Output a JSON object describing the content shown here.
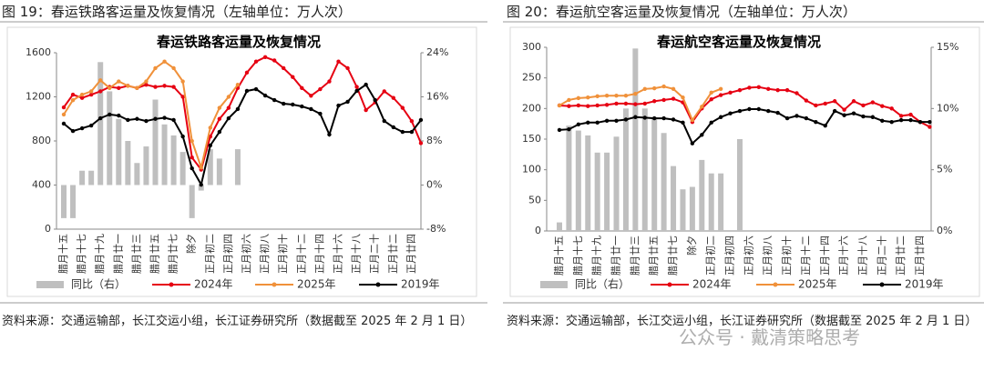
{
  "figure_captions": [
    "图 19：春运铁路客运量及恢复情况（左轴单位：万人次）",
    "图 20：春运航空客运量及恢复情况（左轴单位：万人次）"
  ],
  "sources": [
    "资料来源：交通运输部，长江交运小组，长江证券研究所（数据截至 2025 年 2 月 1 日）",
    "资料来源：交通运输部，长江交运小组，长江证券研究所（数据截至 2025 年 2 月 1 日）"
  ],
  "watermark": "公众号 · 戴清策略思考",
  "chart_data": [
    {
      "type": "combo",
      "title": "春运铁路客运量及恢复情况",
      "categories": [
        "腊月十五",
        null,
        "腊月十七",
        null,
        "腊月十九",
        null,
        "腊月廿一",
        null,
        "腊月廿三",
        null,
        "腊月廿五",
        null,
        "腊月廿七",
        null,
        "除夕",
        null,
        "正月初二",
        null,
        "正月初四",
        null,
        "正月初六",
        null,
        "正月初八",
        null,
        "正月初十",
        null,
        "正月十二",
        null,
        "正月十四",
        null,
        "正月十六",
        null,
        "正月十八",
        null,
        "正月二十",
        null,
        "正月廿二",
        null,
        "正月廿四",
        null
      ],
      "ylim": [
        0,
        1600
      ],
      "yticks": [
        0,
        400,
        800,
        1200,
        1600
      ],
      "y2lim": [
        -8,
        24
      ],
      "y2ticks": [
        {
          "value": -8,
          "label": "-8%"
        },
        {
          "value": 0,
          "label": "0%"
        },
        {
          "value": 8,
          "label": "8%"
        },
        {
          "value": 16,
          "label": "16%"
        },
        {
          "value": 24,
          "label": "24%"
        }
      ],
      "grid": false,
      "series": [
        {
          "name": "同比（右）",
          "type": "bar",
          "axis": "y2",
          "color": "#bfbfbf",
          "values": [
            -6,
            -6,
            2.6,
            2.6,
            22.3,
            17,
            12,
            8,
            4,
            7,
            15.5,
            11,
            9,
            6,
            -6,
            -1,
            6.5,
            4.8,
            null,
            6.5,
            null,
            null,
            null,
            null,
            null,
            null,
            null,
            null,
            null,
            null,
            null,
            null,
            null,
            null,
            null,
            null,
            null,
            null,
            null,
            null
          ]
        },
        {
          "name": "2024年",
          "type": "line",
          "color": "#e60012",
          "values": [
            1105,
            1220,
            1190,
            1220,
            1250,
            1290,
            1280,
            1300,
            1280,
            1310,
            1290,
            1300,
            1290,
            1200,
            650,
            540,
            840,
            1000,
            1100,
            1280,
            1420,
            1520,
            1560,
            1530,
            1460,
            1380,
            1280,
            1210,
            1270,
            1340,
            1520,
            1460,
            1290,
            1080,
            1150,
            1250,
            1190,
            1100,
            980,
            780
          ]
        },
        {
          "name": "2025年",
          "type": "line",
          "color": "#f0913a",
          "values": [
            1040,
            1170,
            1220,
            1250,
            1350,
            1280,
            1340,
            1300,
            1280,
            1340,
            1460,
            1520,
            1460,
            1340,
            800,
            560,
            920,
            1100,
            1200,
            1310,
            null,
            null,
            null,
            null,
            null,
            null,
            null,
            null,
            null,
            null,
            null,
            null,
            null,
            null,
            null,
            null,
            null,
            null,
            null,
            null
          ]
        },
        {
          "name": "2019年",
          "type": "line",
          "color": "#000000",
          "values": [
            957,
            890,
            915,
            940,
            1006,
            1040,
            1030,
            990,
            1000,
            981,
            1000,
            1010,
            990,
            841,
            552,
            404,
            759,
            882,
            1006,
            1089,
            1254,
            1270,
            1212,
            1171,
            1138,
            1130,
            1113,
            1089,
            1047,
            858,
            1121,
            1155,
            1254,
            1311,
            1171,
            981,
            924,
            882,
            882,
            990
          ]
        }
      ]
    },
    {
      "type": "combo",
      "title": "春运航空客运量及恢复情况",
      "categories": [
        "腊月十五",
        null,
        "腊月十七",
        null,
        "腊月十九",
        null,
        "腊月廿一",
        null,
        "腊月廿三",
        null,
        "腊月廿五",
        null,
        "腊月廿七",
        null,
        "除夕",
        null,
        "正月初二",
        null,
        "正月初四",
        null,
        "正月初六",
        null,
        "正月初八",
        null,
        "正月初十",
        null,
        "正月十二",
        null,
        "正月十四",
        null,
        "正月十六",
        null,
        "正月十八",
        null,
        "正月二十",
        null,
        "正月廿二",
        null,
        "正月廿四",
        null
      ],
      "ylim": [
        0,
        300
      ],
      "yticks": [
        0,
        50,
        100,
        150,
        200,
        250,
        300
      ],
      "y2lim": [
        0,
        15
      ],
      "y2ticks": [
        {
          "value": 0,
          "label": "0%"
        },
        {
          "value": 5,
          "label": "5%"
        },
        {
          "value": 10,
          "label": "10%"
        },
        {
          "value": 15,
          "label": "15%"
        }
      ],
      "grid": false,
      "series": [
        {
          "name": "同比（右）",
          "type": "bar",
          "axis": "y2",
          "color": "#bfbfbf",
          "values": [
            0.7,
            8.6,
            8.2,
            7.8,
            6.4,
            6.4,
            7.7,
            10,
            14.9,
            10,
            9.3,
            8,
            5.3,
            3.4,
            3.6,
            5.8,
            4.7,
            4.7,
            null,
            7.5,
            null,
            null,
            null,
            null,
            null,
            null,
            null,
            null,
            null,
            null,
            null,
            null,
            null,
            null,
            null,
            null,
            null,
            null,
            null,
            null
          ]
        },
        {
          "name": "2024年",
          "type": "line",
          "color": "#e60012",
          "values": [
            205,
            204,
            205,
            204,
            205,
            206,
            208,
            208,
            207,
            208,
            212,
            214,
            216,
            210,
            178,
            200,
            215,
            222,
            226,
            230,
            234,
            235,
            232,
            230,
            230,
            225,
            213,
            205,
            208,
            212,
            198,
            212,
            205,
            210,
            204,
            200,
            188,
            190,
            178,
            170
          ]
        },
        {
          "name": "2025年",
          "type": "line",
          "color": "#f0913a",
          "values": [
            205,
            214,
            217,
            218,
            220,
            221,
            221,
            221,
            224,
            232,
            233,
            236,
            232,
            218,
            181,
            203,
            226,
            232,
            null,
            null,
            null,
            null,
            null,
            null,
            null,
            null,
            null,
            null,
            null,
            null,
            null,
            null,
            null,
            null,
            null,
            null,
            null,
            null,
            null,
            null
          ]
        },
        {
          "name": "2019年",
          "type": "line",
          "color": "#000000",
          "values": [
            165,
            166,
            174,
            177,
            177,
            180,
            180,
            182,
            186,
            185,
            184,
            184,
            182,
            177,
            143,
            157,
            177,
            186,
            192,
            196,
            199,
            199,
            196,
            193,
            184,
            188,
            184,
            178,
            172,
            196,
            189,
            192,
            187,
            186,
            180,
            178,
            181,
            181,
            178,
            178
          ]
        }
      ]
    }
  ]
}
